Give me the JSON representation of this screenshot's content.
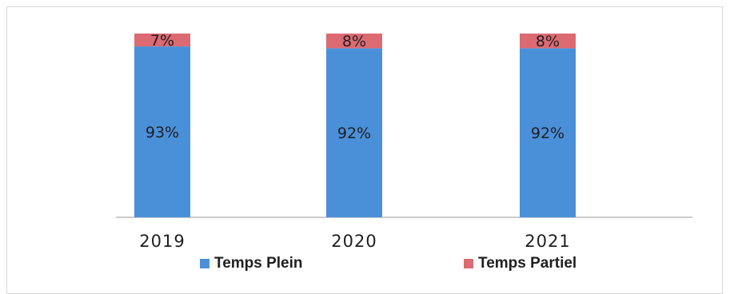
{
  "chart_data": {
    "type": "bar",
    "stacked": true,
    "percent": true,
    "categories": [
      "2019",
      "2020",
      "2021"
    ],
    "series": [
      {
        "name": "Temps Plein",
        "values": [
          93,
          92,
          92
        ],
        "labels": [
          "93%",
          "92%",
          "92%"
        ],
        "color": "#4a90d9"
      },
      {
        "name": "Temps Partiel",
        "values": [
          7,
          8,
          8
        ],
        "labels": [
          "7%",
          "8%",
          "8%"
        ],
        "color": "#dc6a72"
      }
    ],
    "ylim": [
      0,
      100
    ],
    "grid": false,
    "legend_position": "bottom"
  }
}
